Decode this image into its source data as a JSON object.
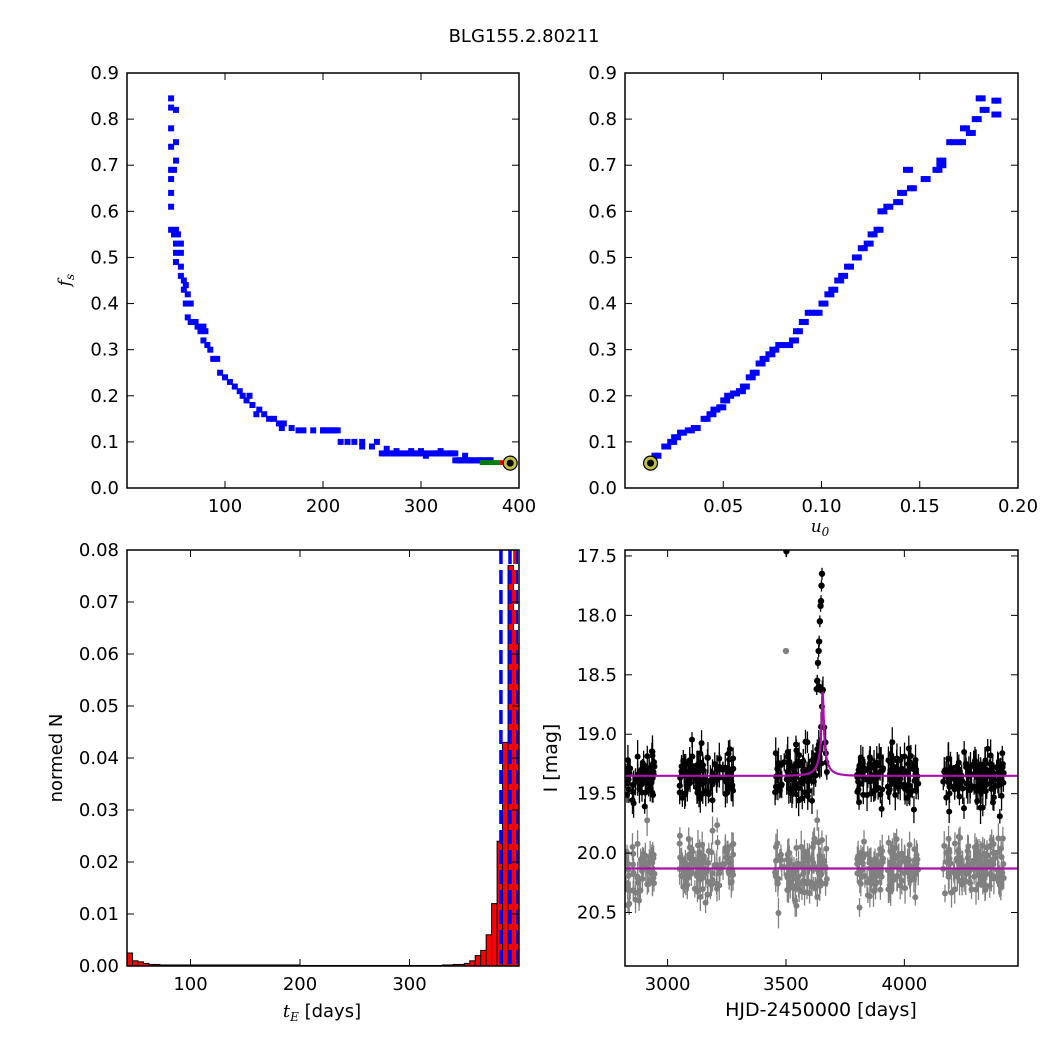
{
  "figure": {
    "title": "BLG155.2.80211"
  },
  "chart_data": [
    {
      "id": "fs_vs_tE",
      "type": "scatter",
      "xlabel": "",
      "ylabel": "f_s",
      "xlim": [
        0,
        400
      ],
      "ylim": [
        0.0,
        0.9
      ],
      "xticks": [
        "100",
        "200",
        "300",
        "400"
      ],
      "yticks": [
        "0.0",
        "0.1",
        "0.2",
        "0.3",
        "0.4",
        "0.5",
        "0.6",
        "0.7",
        "0.8",
        "0.9"
      ],
      "colors": {
        "points": "#0000ff",
        "best_fill": "#bfbf40",
        "best_edge": "#000000",
        "accent_green": "#008000",
        "accent_red": "#ff0000"
      },
      "points": [
        [
          45,
          0.845
        ],
        [
          45,
          0.825
        ],
        [
          50,
          0.82
        ],
        [
          45,
          0.78
        ],
        [
          50,
          0.75
        ],
        [
          45,
          0.74
        ],
        [
          50,
          0.71
        ],
        [
          45,
          0.69
        ],
        [
          48,
          0.69
        ],
        [
          45,
          0.67
        ],
        [
          45,
          0.64
        ],
        [
          45,
          0.61
        ],
        [
          45,
          0.56
        ],
        [
          50,
          0.56
        ],
        [
          48,
          0.55
        ],
        [
          52,
          0.55
        ],
        [
          50,
          0.53
        ],
        [
          55,
          0.53
        ],
        [
          50,
          0.51
        ],
        [
          55,
          0.51
        ],
        [
          50,
          0.49
        ],
        [
          55,
          0.48
        ],
        [
          55,
          0.46
        ],
        [
          58,
          0.45
        ],
        [
          60,
          0.44
        ],
        [
          58,
          0.43
        ],
        [
          62,
          0.42
        ],
        [
          60,
          0.4
        ],
        [
          65,
          0.4
        ],
        [
          62,
          0.37
        ],
        [
          65,
          0.36
        ],
        [
          70,
          0.36
        ],
        [
          72,
          0.35
        ],
        [
          78,
          0.35
        ],
        [
          75,
          0.34
        ],
        [
          80,
          0.34
        ],
        [
          78,
          0.32
        ],
        [
          82,
          0.31
        ],
        [
          85,
          0.3
        ],
        [
          88,
          0.28
        ],
        [
          92,
          0.28
        ],
        [
          95,
          0.25
        ],
        [
          100,
          0.24
        ],
        [
          105,
          0.23
        ],
        [
          110,
          0.22
        ],
        [
          115,
          0.21
        ],
        [
          118,
          0.2
        ],
        [
          125,
          0.2
        ],
        [
          122,
          0.19
        ],
        [
          128,
          0.18
        ],
        [
          135,
          0.17
        ],
        [
          132,
          0.16
        ],
        [
          140,
          0.16
        ],
        [
          145,
          0.15
        ],
        [
          150,
          0.15
        ],
        [
          155,
          0.14
        ],
        [
          160,
          0.14
        ],
        [
          158,
          0.13
        ],
        [
          168,
          0.13
        ],
        [
          175,
          0.125
        ],
        [
          180,
          0.125
        ],
        [
          190,
          0.125
        ],
        [
          200,
          0.125
        ],
        [
          218,
          0.1
        ],
        [
          225,
          0.1
        ],
        [
          232,
          0.1
        ],
        [
          240,
          0.1
        ],
        [
          240,
          0.09
        ],
        [
          250,
          0.09
        ],
        [
          255,
          0.1
        ],
        [
          265,
          0.085
        ],
        [
          275,
          0.08
        ],
        [
          290,
          0.08
        ],
        [
          300,
          0.08
        ],
        [
          305,
          0.07
        ],
        [
          315,
          0.075
        ],
        [
          320,
          0.08
        ],
        [
          330,
          0.075
        ],
        [
          345,
          0.07
        ],
        [
          340,
          0.06
        ],
        [
          350,
          0.06
        ],
        [
          360,
          0.06
        ],
        [
          370,
          0.06
        ]
      ],
      "accent_segments": [
        [
          {
            "x0": 360,
            "x1": 380,
            "y": 0.054,
            "color": "green"
          }
        ],
        [
          {
            "x0": 380,
            "x1": 390,
            "y": 0.054,
            "color": "red"
          }
        ]
      ],
      "best_fit_marker": {
        "x": 391,
        "y": 0.054
      }
    },
    {
      "id": "fs_vs_u0",
      "type": "scatter",
      "xlabel": "u_0",
      "ylabel": "",
      "xlim": [
        0.0,
        0.2
      ],
      "ylim": [
        0.0,
        0.9
      ],
      "xticks": [
        "0.05",
        "0.10",
        "0.15",
        "0.20"
      ],
      "yticks": [
        "0.0",
        "0.1",
        "0.2",
        "0.3",
        "0.4",
        "0.5",
        "0.6",
        "0.7",
        "0.8",
        "0.9"
      ],
      "points": [
        [
          0.015,
          0.07
        ],
        [
          0.02,
          0.09
        ],
        [
          0.023,
          0.1
        ],
        [
          0.025,
          0.11
        ],
        [
          0.028,
          0.12
        ],
        [
          0.032,
          0.125
        ],
        [
          0.035,
          0.13
        ],
        [
          0.04,
          0.15
        ],
        [
          0.043,
          0.16
        ],
        [
          0.045,
          0.17
        ],
        [
          0.048,
          0.175
        ],
        [
          0.05,
          0.19
        ],
        [
          0.052,
          0.2
        ],
        [
          0.055,
          0.205
        ],
        [
          0.058,
          0.21
        ],
        [
          0.06,
          0.22
        ],
        [
          0.063,
          0.24
        ],
        [
          0.065,
          0.25
        ],
        [
          0.068,
          0.27
        ],
        [
          0.07,
          0.28
        ],
        [
          0.073,
          0.29
        ],
        [
          0.075,
          0.3
        ],
        [
          0.078,
          0.31
        ],
        [
          0.082,
          0.31
        ],
        [
          0.085,
          0.32
        ],
        [
          0.087,
          0.34
        ],
        [
          0.09,
          0.36
        ],
        [
          0.093,
          0.38
        ],
        [
          0.097,
          0.38
        ],
        [
          0.1,
          0.4
        ],
        [
          0.103,
          0.42
        ],
        [
          0.105,
          0.43
        ],
        [
          0.108,
          0.45
        ],
        [
          0.11,
          0.46
        ],
        [
          0.113,
          0.48
        ],
        [
          0.117,
          0.5
        ],
        [
          0.12,
          0.52
        ],
        [
          0.123,
          0.53
        ],
        [
          0.125,
          0.55
        ],
        [
          0.128,
          0.56
        ],
        [
          0.13,
          0.6
        ],
        [
          0.133,
          0.61
        ],
        [
          0.138,
          0.62
        ],
        [
          0.14,
          0.64
        ],
        [
          0.145,
          0.65
        ],
        [
          0.143,
          0.69
        ],
        [
          0.152,
          0.67
        ],
        [
          0.158,
          0.69
        ],
        [
          0.16,
          0.7
        ],
        [
          0.16,
          0.71
        ],
        [
          0.165,
          0.75
        ],
        [
          0.17,
          0.75
        ],
        [
          0.175,
          0.77
        ],
        [
          0.172,
          0.78
        ],
        [
          0.178,
          0.8
        ],
        [
          0.182,
          0.82
        ],
        [
          0.18,
          0.845
        ],
        [
          0.188,
          0.84
        ],
        [
          0.188,
          0.81
        ]
      ],
      "best_fit_marker": {
        "x": 0.013,
        "y": 0.054
      }
    },
    {
      "id": "tE_hist",
      "type": "bar",
      "xlabel": "t_E [days]",
      "ylabel": "normed N",
      "xlim": [
        42,
        400
      ],
      "ylim": [
        0.0,
        0.08
      ],
      "xticks": [
        "100",
        "200",
        "300"
      ],
      "yticks": [
        "0.00",
        "0.01",
        "0.02",
        "0.03",
        "0.04",
        "0.05",
        "0.06",
        "0.07",
        "0.08"
      ],
      "colors": {
        "bars": "#ff0000",
        "edges": "#000000",
        "vlines": "#0000ff",
        "median": "#ff0000"
      },
      "bins": [
        [
          42,
          47,
          0.0025
        ],
        [
          47,
          52,
          0.001
        ],
        [
          52,
          57,
          0.0008
        ],
        [
          57,
          62,
          0.0005
        ],
        [
          62,
          67,
          0.0003
        ],
        [
          67,
          72,
          0.0003
        ],
        [
          72,
          77,
          0.0002
        ],
        [
          77,
          82,
          0.0002
        ],
        [
          82,
          200,
          0.0002
        ],
        [
          200,
          300,
          0.0001
        ],
        [
          300,
          330,
          0.0001
        ],
        [
          330,
          340,
          0.0002
        ],
        [
          340,
          350,
          0.0003
        ],
        [
          350,
          355,
          0.0005
        ],
        [
          355,
          360,
          0.001
        ],
        [
          360,
          365,
          0.002
        ],
        [
          365,
          370,
          0.003
        ],
        [
          370,
          375,
          0.006
        ],
        [
          375,
          380,
          0.012
        ],
        [
          380,
          385,
          0.024
        ],
        [
          385,
          390,
          0.043
        ],
        [
          390,
          395,
          0.077
        ],
        [
          395,
          400,
          0.062
        ]
      ],
      "vlines": [
        383.5,
        391.8,
        397.5
      ],
      "median": 396
    },
    {
      "id": "lightcurve",
      "type": "scatter",
      "xlabel": "HJD-2450000 [days]",
      "ylabel": "I [mag]",
      "xlim": [
        2820,
        4480
      ],
      "ylim": [
        20.95,
        17.45
      ],
      "xticks": [
        "3000",
        "3500",
        "4000"
      ],
      "yticks": [
        "17.5",
        "18.0",
        "18.5",
        "19.0",
        "19.5",
        "20.0",
        "20.5"
      ],
      "colors": {
        "data": "#000000",
        "data2": "#808080",
        "model": "#aa10aa"
      },
      "baseline": 19.35,
      "baseline2": 20.13,
      "peak": {
        "t0": 3655,
        "mag": 17.9
      },
      "observing_seasons": [
        [
          2820,
          2950
        ],
        [
          3050,
          3280
        ],
        [
          3450,
          3680
        ],
        [
          3800,
          4060
        ],
        [
          4160,
          4420
        ]
      ],
      "peak_points": [
        [
          3652,
          17.65
        ],
        [
          3650,
          17.75
        ],
        [
          3648,
          17.88
        ],
        [
          3646,
          17.92
        ],
        [
          3643,
          18.05
        ],
        [
          3640,
          18.22
        ],
        [
          3638,
          18.3
        ],
        [
          3635,
          18.4
        ],
        [
          3632,
          18.55
        ],
        [
          3630,
          18.62
        ],
        [
          3640,
          18.6
        ],
        [
          3502,
          17.46
        ]
      ],
      "second_outlier": [
        3500,
        18.3
      ]
    }
  ]
}
